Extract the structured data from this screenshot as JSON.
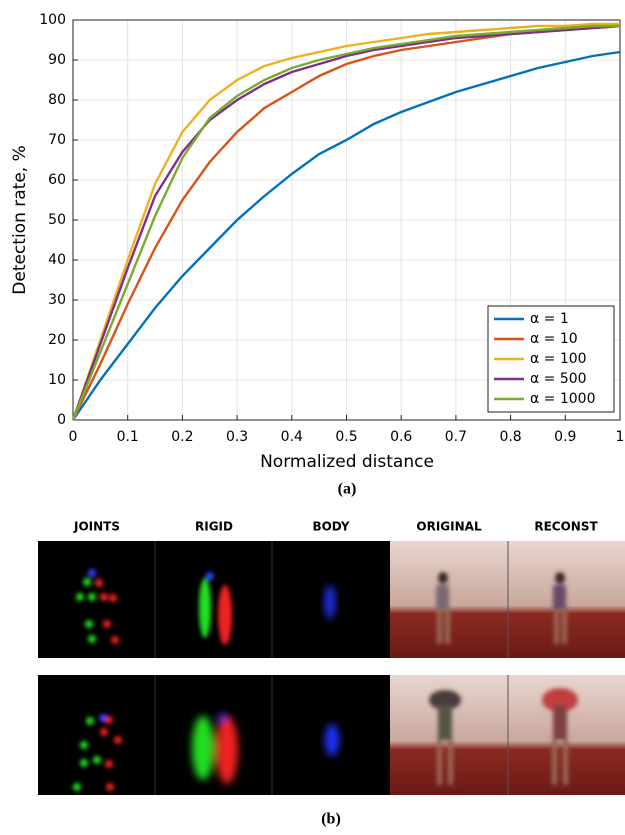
{
  "chart_data": {
    "type": "line",
    "xlabel": "Normalized distance",
    "ylabel": "Detection rate, %",
    "x": [
      0,
      0.05,
      0.1,
      0.15,
      0.2,
      0.25,
      0.3,
      0.35,
      0.4,
      0.45,
      0.5,
      0.55,
      0.6,
      0.65,
      0.7,
      0.75,
      0.8,
      0.85,
      0.9,
      0.95,
      1
    ],
    "series": [
      {
        "name": "α = 1",
        "color": "#0072bd",
        "values": [
          0,
          10,
          19,
          28,
          36,
          43,
          50,
          56,
          61.5,
          66.5,
          70,
          74,
          77,
          79.5,
          82,
          84,
          86,
          88,
          89.5,
          91,
          92
        ]
      },
      {
        "name": "α = 10",
        "color": "#d95319",
        "values": [
          0,
          14,
          29,
          43,
          55,
          64.5,
          72,
          78,
          82,
          86,
          89,
          91,
          92.5,
          93.5,
          94.5,
          95.5,
          96.5,
          97,
          97.5,
          98,
          98.5
        ]
      },
      {
        "name": "α = 100",
        "color": "#edb120",
        "values": [
          0,
          20,
          40,
          59,
          72,
          80,
          85,
          88.5,
          90.5,
          92,
          93.5,
          94.5,
          95.5,
          96.5,
          97,
          97.5,
          98,
          98.5,
          98.5,
          99,
          99
        ]
      },
      {
        "name": "α = 500",
        "color": "#7e2f8e",
        "values": [
          0,
          19,
          38,
          56,
          67,
          75,
          80,
          84,
          87,
          89,
          91,
          92.5,
          93.5,
          94.5,
          95.5,
          96,
          96.5,
          97,
          97.5,
          98,
          98.5
        ]
      },
      {
        "name": "α = 1000",
        "color": "#77ac30",
        "values": [
          0,
          17,
          34,
          51,
          65.5,
          75.5,
          81,
          85,
          88,
          90,
          91.5,
          93,
          94,
          95,
          96,
          96.5,
          97,
          97.5,
          98,
          98.5,
          98.5
        ]
      }
    ],
    "xlim": [
      0,
      1
    ],
    "ylim": [
      0,
      100
    ],
    "xticks": [
      0,
      0.1,
      0.2,
      0.3,
      0.4,
      0.5,
      0.6,
      0.7,
      0.8,
      0.9,
      1
    ],
    "yticks": [
      0,
      10,
      20,
      30,
      40,
      50,
      60,
      70,
      80,
      90,
      100
    ],
    "grid": true,
    "legend": "lower-right"
  },
  "figure": {
    "caption_a": "(a)",
    "caption_b": "(b)",
    "panel_headers": [
      "JOINTS",
      "RIGID",
      "BODY",
      "ORIGINAL",
      "RECONST"
    ]
  }
}
